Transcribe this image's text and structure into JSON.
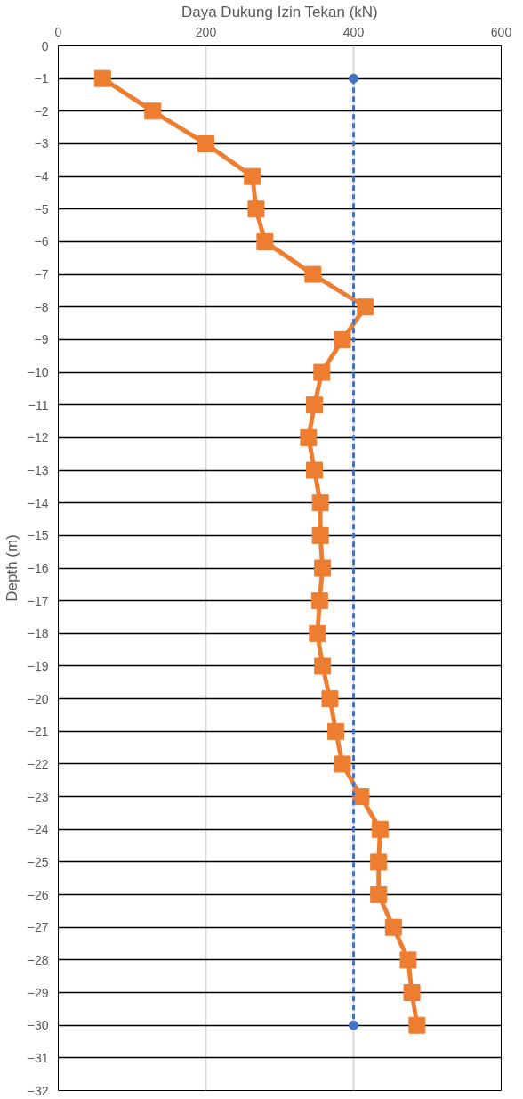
{
  "chart_data": {
    "type": "line",
    "xlabel": "Daya Dukung Izin Tekan (kN)",
    "ylabel": "Depth (m)",
    "xlim": [
      0,
      600
    ],
    "xticks": [
      0,
      200,
      400,
      600
    ],
    "ylim": [
      -32,
      0
    ],
    "yticks": [
      -32,
      -31,
      -30,
      -29,
      -28,
      -27,
      -26,
      -25,
      -24,
      -23,
      -22,
      -21,
      -20,
      -19,
      -18,
      -17,
      -16,
      -15,
      -14,
      -13,
      -12,
      -11,
      -10,
      -9,
      -8,
      -7,
      -6,
      -5,
      -4,
      -3,
      -2,
      -1,
      0
    ],
    "grid": true,
    "series": [
      {
        "color": "#ed7d31",
        "marker": "square",
        "line_style": "solid",
        "x": [
          60,
          128,
          200,
          263,
          268,
          280,
          345,
          416,
          385,
          357,
          347,
          339,
          347,
          355,
          355,
          358,
          354,
          351,
          358,
          368,
          376,
          385,
          410,
          436,
          434,
          434,
          454,
          474,
          479,
          486
        ],
        "values": [
          -1,
          -2,
          -3,
          -4,
          -5,
          -6,
          -7,
          -8,
          -9,
          -10,
          -11,
          -12,
          -13,
          -14,
          -15,
          -16,
          -17,
          -18,
          -19,
          -20,
          -21,
          -22,
          -23,
          -24,
          -25,
          -26,
          -27,
          -28,
          -29,
          -30
        ]
      },
      {
        "color": "#4472c4",
        "marker": "circle",
        "line_style": "dashed",
        "x": [
          400,
          400
        ],
        "values": [
          -1,
          -30
        ]
      }
    ]
  }
}
